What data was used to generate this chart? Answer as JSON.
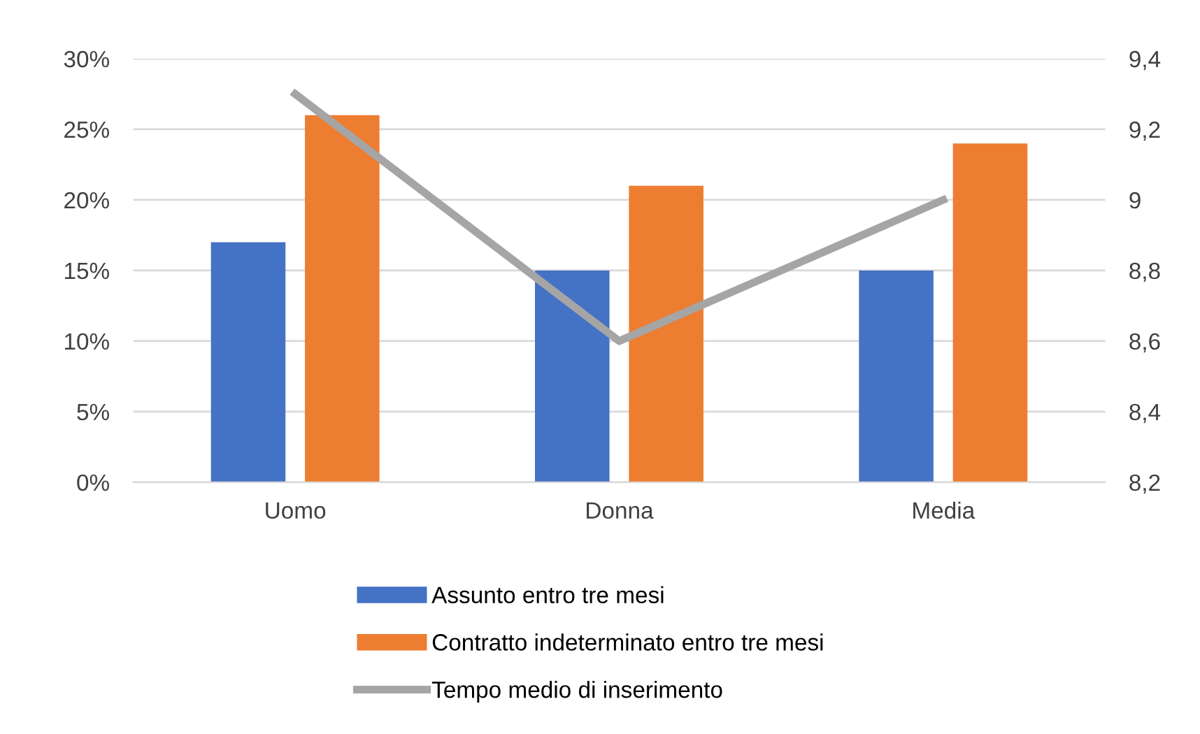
{
  "chart_data": {
    "type": "bar",
    "categories": [
      "Uomo",
      "Donna",
      "Media"
    ],
    "series": [
      {
        "name": "Assunto entro tre mesi",
        "color": "#4472c4",
        "values": [
          17,
          15,
          15
        ]
      },
      {
        "name": "Contratto indeterminato entro tre mesi",
        "color": "#ed7d31",
        "values": [
          26,
          21,
          24
        ]
      },
      {
        "name": "Tempo medio di inserimento",
        "color": "#a5a5a5",
        "type": "line",
        "axis": "y2",
        "values": [
          9.3,
          8.6,
          9.0
        ]
      }
    ],
    "ylim": [
      0,
      30
    ],
    "yticks": [
      {
        "value": 0,
        "label": "0%"
      },
      {
        "value": 5,
        "label": "5%"
      },
      {
        "value": 10,
        "label": "10%"
      },
      {
        "value": 15,
        "label": "15%"
      },
      {
        "value": 20,
        "label": "20%"
      },
      {
        "value": 25,
        "label": "25%"
      },
      {
        "value": 30,
        "label": "30%"
      }
    ],
    "y2lim": [
      8.2,
      9.4
    ],
    "y2ticks": [
      {
        "value": 8.2,
        "label": "8,2"
      },
      {
        "value": 8.4,
        "label": "8,4"
      },
      {
        "value": 8.6,
        "label": "8,6"
      },
      {
        "value": 8.8,
        "label": "8,8"
      },
      9,
      {
        "value": 9.2,
        "label": "9,2"
      },
      {
        "value": 9.4,
        "label": "9,4"
      }
    ],
    "grid": "y",
    "legend": "bottom",
    "marker": "none",
    "line_style": "solid"
  }
}
